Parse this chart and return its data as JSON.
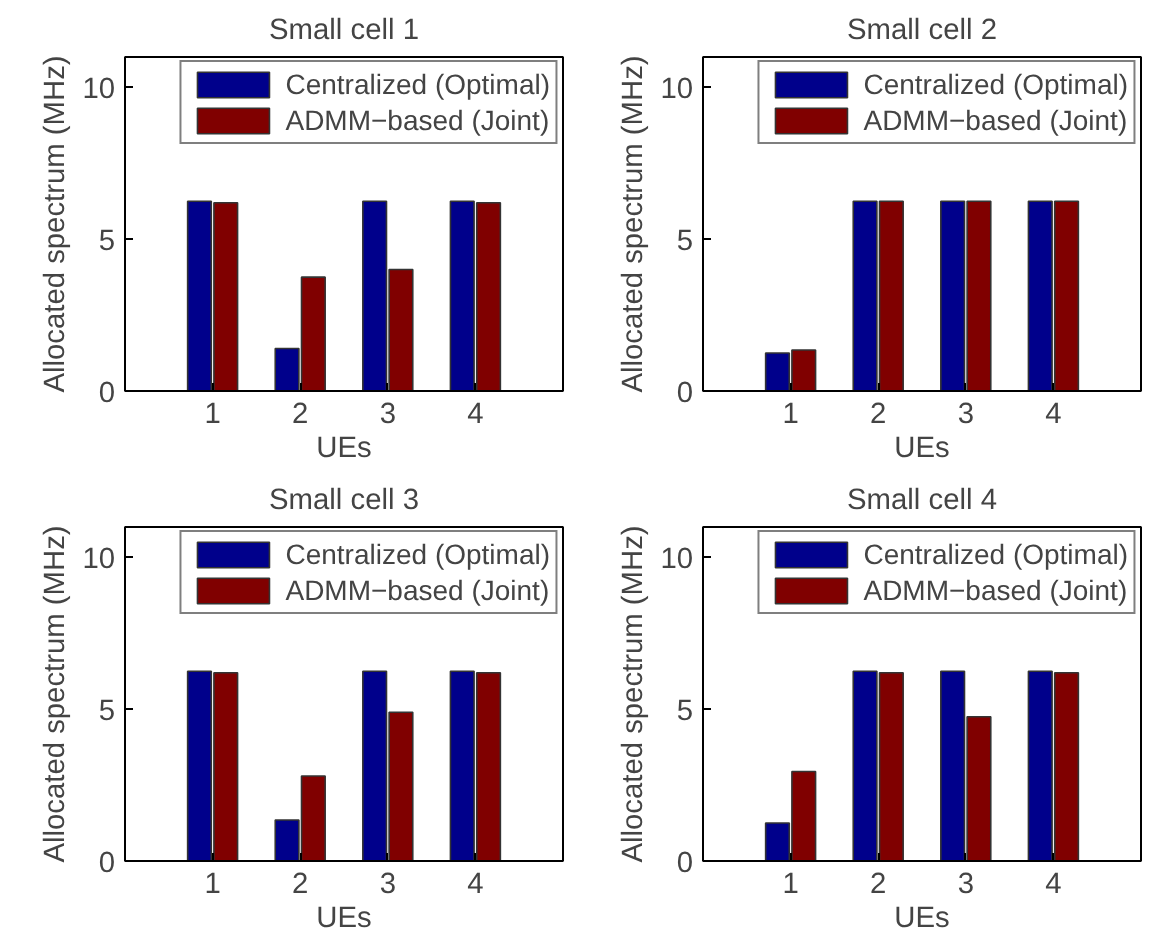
{
  "chart_data": [
    {
      "type": "bar",
      "title": "Small cell 1",
      "xlabel": "UEs",
      "ylabel": "Allocated spectrum (MHz)",
      "x": [
        1,
        2,
        3,
        4
      ],
      "xlim": [
        0,
        5
      ],
      "xticks": [
        1,
        2,
        3,
        4
      ],
      "ylim": [
        0,
        11
      ],
      "yticks": [
        0,
        5,
        10
      ],
      "grid": false,
      "legend": "top right",
      "series": [
        {
          "name": "Centralized (Optimal)",
          "color": "#00008b",
          "values": [
            6.25,
            1.4,
            6.25,
            6.25
          ]
        },
        {
          "name": "ADMM−based (Joint)",
          "color": "#800000",
          "values": [
            6.2,
            3.75,
            4.0,
            6.2
          ]
        }
      ]
    },
    {
      "type": "bar",
      "title": "Small cell 2",
      "xlabel": "UEs",
      "ylabel": "Allocated spectrum (MHz)",
      "x": [
        1,
        2,
        3,
        4
      ],
      "xlim": [
        0,
        5
      ],
      "xticks": [
        1,
        2,
        3,
        4
      ],
      "ylim": [
        0,
        11
      ],
      "yticks": [
        0,
        5,
        10
      ],
      "grid": false,
      "legend": "top right",
      "series": [
        {
          "name": "Centralized (Optimal)",
          "color": "#00008b",
          "values": [
            1.25,
            6.25,
            6.25,
            6.25
          ]
        },
        {
          "name": "ADMM−based (Joint)",
          "color": "#800000",
          "values": [
            1.35,
            6.25,
            6.25,
            6.25
          ]
        }
      ]
    },
    {
      "type": "bar",
      "title": "Small cell 3",
      "xlabel": "UEs",
      "ylabel": "Allocated spectrum (MHz)",
      "x": [
        1,
        2,
        3,
        4
      ],
      "xlim": [
        0,
        5
      ],
      "xticks": [
        1,
        2,
        3,
        4
      ],
      "ylim": [
        0,
        11
      ],
      "yticks": [
        0,
        5,
        10
      ],
      "grid": false,
      "legend": "top right",
      "series": [
        {
          "name": "Centralized (Optimal)",
          "color": "#00008b",
          "values": [
            6.25,
            1.35,
            6.25,
            6.25
          ]
        },
        {
          "name": "ADMM−based (Joint)",
          "color": "#800000",
          "values": [
            6.2,
            2.8,
            4.9,
            6.2
          ]
        }
      ]
    },
    {
      "type": "bar",
      "title": "Small cell 4",
      "xlabel": "UEs",
      "ylabel": "Allocated spectrum (MHz)",
      "x": [
        1,
        2,
        3,
        4
      ],
      "xlim": [
        0,
        5
      ],
      "xticks": [
        1,
        2,
        3,
        4
      ],
      "ylim": [
        0,
        11
      ],
      "yticks": [
        0,
        5,
        10
      ],
      "grid": false,
      "legend": "top right",
      "series": [
        {
          "name": "Centralized (Optimal)",
          "color": "#00008b",
          "values": [
            1.25,
            6.25,
            6.25,
            6.25
          ]
        },
        {
          "name": "ADMM−based (Joint)",
          "color": "#800000",
          "values": [
            2.95,
            6.2,
            4.75,
            6.2
          ]
        }
      ]
    }
  ]
}
